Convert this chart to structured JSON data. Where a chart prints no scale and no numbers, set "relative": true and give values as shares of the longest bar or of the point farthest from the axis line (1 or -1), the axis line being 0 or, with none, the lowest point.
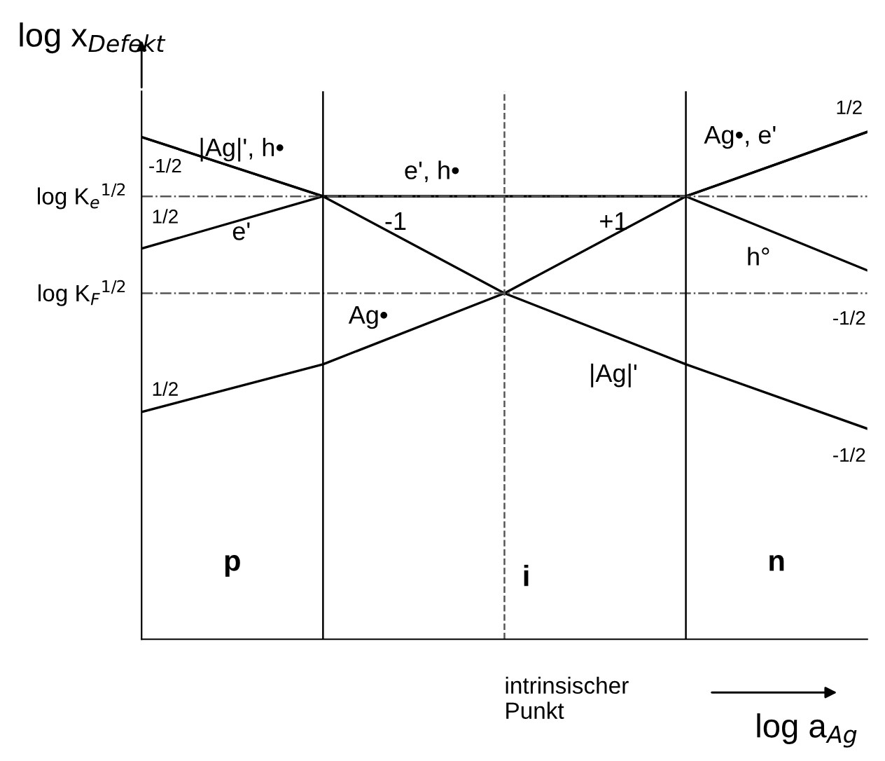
{
  "chart_data": {
    "type": "line",
    "relative": true,
    "ylabel": "log x$_{Defekt}$",
    "xlabel": "log a$_{Ag}$",
    "categories": [
      null,
      null,
      null,
      null,
      null
    ],
    "series": [
      {
        "color": "#000000",
        "values": [
          0.99,
          0.873,
          0.873,
          0.873,
          0.727
        ]
      },
      {
        "color": "#000000",
        "values": [
          0.77,
          0.873,
          0.873,
          0.873,
          1.0
        ]
      },
      {
        "color": "#000000",
        "values": [
          0.448,
          0.542,
          0.682,
          0.873,
          1.0
        ]
      },
      {
        "color": "#000000",
        "values": [
          0.99,
          0.873,
          0.682,
          0.542,
          0.415
        ]
      }
    ],
    "ref_lines": [
      {
        "axis": "y",
        "value": 0.873,
        "label": "log K$_{e}$$^{1/2}$",
        "line_style": "dashdot",
        "color": "#555555"
      },
      {
        "axis": "y",
        "value": 0.682,
        "label": "log K$_{F}$$^{1/2}$",
        "line_style": "dashdot",
        "color": "#555555"
      }
    ],
    "annotations": [
      "intrinsischer\nPunkt",
      "|Ag|', h•",
      "e'",
      "e', h•",
      "Ag•, e'",
      "h°",
      "-1",
      "+1",
      "Ag•",
      "|Ag|'",
      "-1/2",
      "1/2",
      "1/2",
      "1/2",
      "-1/2",
      "-1/2",
      "p",
      "i",
      "n"
    ]
  }
}
